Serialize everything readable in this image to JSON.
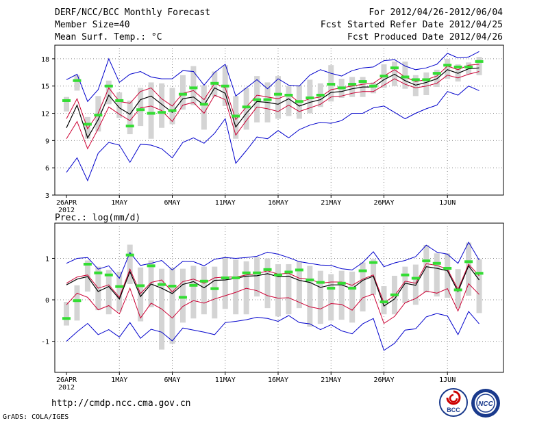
{
  "header": {
    "title": "DERF/NCC/BCC Monthly Forecast",
    "member_size": "Member Size=40",
    "variable_top": "Mean Surf. Temp.: °C",
    "period": "For 2012/04/26-2012/06/04",
    "started": "Fcst Started Refer Date 2012/04/25",
    "produced": "Fcst Produced Date 2012/04/26"
  },
  "footer": {
    "url": "http://cmdp.ncc.cma.gov.cn",
    "grads": "GrADS: COLA/IGES",
    "logo_left": "BCC",
    "logo_right": "NCC"
  },
  "colors": {
    "ensemble_mean": "#000000",
    "ensemble_spread": "#cc0033",
    "extremes": "#0000cc",
    "median_marker": "#33dd33",
    "box": "#d4d4d4",
    "grid": "#888888"
  },
  "chart_data": [
    {
      "type": "line",
      "title": "Mean Surf. Temp.: °C",
      "xlabel": "",
      "ylabel": "°C",
      "grid": true,
      "ylim": [
        3,
        19.5
      ],
      "yticks": [
        3,
        6,
        9,
        12,
        15,
        18
      ],
      "xticks": [
        {
          "day": 0,
          "label": "26APR",
          "sublabel": "2012"
        },
        {
          "day": 5,
          "label": "1MAY"
        },
        {
          "day": 10,
          "label": "6MAY"
        },
        {
          "day": 15,
          "label": "11MAY"
        },
        {
          "day": 20,
          "label": "16MAY"
        },
        {
          "day": 25,
          "label": "21MAY"
        },
        {
          "day": 30,
          "label": "26MAY"
        },
        {
          "day": 36,
          "label": "1JUN"
        }
      ],
      "days": [
        0,
        1,
        2,
        3,
        4,
        5,
        6,
        7,
        8,
        9,
        10,
        11,
        12,
        13,
        14,
        15,
        16,
        17,
        18,
        19,
        20,
        21,
        22,
        23,
        24,
        25,
        26,
        27,
        28,
        29,
        30,
        31,
        32,
        33,
        34,
        35,
        36,
        37,
        38,
        39
      ],
      "series": [
        {
          "name": "max",
          "values": [
            15.7,
            16.3,
            13.3,
            14.6,
            18.0,
            15.4,
            16.3,
            16.6,
            16.0,
            15.8,
            15.8,
            16.7,
            16.6,
            15.1,
            16.5,
            17.4,
            13.9,
            14.8,
            15.7,
            14.7,
            15.8,
            15.1,
            15.0,
            16.2,
            16.8,
            16.4,
            16.1,
            16.7,
            17.0,
            17.1,
            17.8,
            17.9,
            17.2,
            16.8,
            17.0,
            17.4,
            18.6,
            18.1,
            18.2,
            18.8
          ]
        },
        {
          "name": "upper",
          "values": [
            11.4,
            13.6,
            10.3,
            12.0,
            14.8,
            13.3,
            13.1,
            14.4,
            14.8,
            13.6,
            12.8,
            14.2,
            14.5,
            13.5,
            15.3,
            14.8,
            11.3,
            12.7,
            14.0,
            13.8,
            13.6,
            14.1,
            13.2,
            13.6,
            13.8,
            14.6,
            14.8,
            15.0,
            15.2,
            15.3,
            16.1,
            16.8,
            16.0,
            15.5,
            15.7,
            16.1,
            17.2,
            16.8,
            17.3,
            17.4
          ]
        },
        {
          "name": "mean",
          "values": [
            10.4,
            12.9,
            9.3,
            11.3,
            14.0,
            12.6,
            11.9,
            13.5,
            13.9,
            13.0,
            12.1,
            13.6,
            13.8,
            12.9,
            14.8,
            14.2,
            10.5,
            12.0,
            13.3,
            13.2,
            13.0,
            13.6,
            12.8,
            13.2,
            13.5,
            14.3,
            14.4,
            14.7,
            14.9,
            14.9,
            15.7,
            16.3,
            15.6,
            15.1,
            15.4,
            15.8,
            16.8,
            16.4,
            16.9,
            17.0
          ]
        },
        {
          "name": "lower",
          "values": [
            9.2,
            11.1,
            8.1,
            10.3,
            12.7,
            11.9,
            11.2,
            12.6,
            12.8,
            12.3,
            11.1,
            12.9,
            13.2,
            12.0,
            14.0,
            13.5,
            9.6,
            11.2,
            12.7,
            12.5,
            12.2,
            12.9,
            12.2,
            12.6,
            13.0,
            13.8,
            13.9,
            14.2,
            14.4,
            14.4,
            15.1,
            15.8,
            15.2,
            14.8,
            15.0,
            15.3,
            16.2,
            15.9,
            16.3,
            16.6
          ]
        },
        {
          "name": "min",
          "values": [
            5.5,
            7.1,
            4.6,
            7.6,
            8.8,
            8.5,
            6.6,
            8.6,
            8.5,
            8.1,
            7.1,
            8.8,
            9.3,
            8.7,
            9.8,
            11.4,
            6.5,
            7.9,
            9.4,
            9.2,
            10.1,
            9.3,
            10.2,
            10.7,
            11.0,
            10.9,
            11.2,
            12.0,
            12.0,
            12.6,
            12.8,
            12.1,
            11.4,
            12.0,
            12.5,
            12.9,
            14.4,
            14.0,
            15.0,
            14.5
          ]
        },
        {
          "name": "median",
          "values": [
            13.4,
            15.6,
            10.8,
            11.8,
            15.0,
            13.4,
            10.6,
            12.4,
            12.0,
            12.1,
            12.3,
            14.1,
            14.8,
            13.0,
            15.3,
            15.0,
            11.7,
            12.7,
            13.5,
            13.5,
            14.1,
            14.0,
            13.3,
            13.7,
            14.0,
            15.2,
            14.8,
            15.2,
            15.5,
            15.0,
            16.1,
            17.0,
            16.0,
            15.7,
            15.7,
            16.4,
            17.3,
            17.1,
            17.1,
            17.7
          ]
        },
        {
          "name": "box_low",
          "values": [
            12.2,
            14.5,
            9.2,
            10.0,
            13.0,
            11.5,
            9.7,
            10.6,
            9.2,
            10.4,
            10.8,
            12.4,
            12.9,
            10.2,
            13.8,
            12.8,
            9.2,
            10.2,
            11.0,
            11.0,
            11.4,
            11.7,
            11.4,
            12.0,
            12.7,
            13.3,
            13.7,
            13.8,
            13.8,
            14.2,
            14.8,
            15.0,
            14.7,
            13.9,
            14.0,
            14.9,
            15.8,
            15.5,
            16.3,
            16.2
          ]
        },
        {
          "name": "box_high",
          "values": [
            13.8,
            16.2,
            11.6,
            13.9,
            15.6,
            14.3,
            13.4,
            14.8,
            15.4,
            15.3,
            14.8,
            16.2,
            17.2,
            15.1,
            16.6,
            17.3,
            13.9,
            14.8,
            16.1,
            15.4,
            16.1,
            15.0,
            15.1,
            15.7,
            15.3,
            17.3,
            15.8,
            16.0,
            16.0,
            15.4,
            17.4,
            17.7,
            17.7,
            16.2,
            16.5,
            16.8,
            18.0,
            17.4,
            17.6,
            18.2
          ]
        }
      ]
    },
    {
      "type": "line",
      "title": "Prec.: log(mm/d)",
      "xlabel": "",
      "ylabel": "log(mm/d)",
      "grid": true,
      "ylim": [
        -1.75,
        1.85
      ],
      "yticks": [
        -1,
        0,
        1
      ],
      "xticks": [
        {
          "day": 0,
          "label": "26APR",
          "sublabel": "2012"
        },
        {
          "day": 5,
          "label": "1MAY"
        },
        {
          "day": 10,
          "label": "6MAY"
        },
        {
          "day": 15,
          "label": "11MAY"
        },
        {
          "day": 20,
          "label": "16MAY"
        },
        {
          "day": 25,
          "label": "21MAY"
        },
        {
          "day": 30,
          "label": "26MAY"
        },
        {
          "day": 36,
          "label": "1JUN"
        }
      ],
      "days": [
        0,
        1,
        2,
        3,
        4,
        5,
        6,
        7,
        8,
        9,
        10,
        11,
        12,
        13,
        14,
        15,
        16,
        17,
        18,
        19,
        20,
        21,
        22,
        23,
        24,
        25,
        26,
        27,
        28,
        29,
        30,
        31,
        32,
        33,
        34,
        35,
        36,
        37,
        38,
        39
      ],
      "series": [
        {
          "name": "max",
          "values": [
            0.88,
            1.0,
            1.02,
            0.74,
            0.82,
            0.52,
            1.14,
            0.83,
            0.88,
            0.95,
            0.72,
            0.93,
            0.92,
            0.82,
            0.98,
            1.02,
            1.0,
            1.02,
            1.05,
            1.15,
            1.1,
            1.02,
            0.92,
            0.88,
            0.84,
            0.83,
            0.75,
            0.72,
            0.9,
            1.16,
            0.8,
            0.89,
            0.95,
            1.04,
            1.32,
            1.15,
            1.1,
            0.88,
            1.39,
            0.96
          ]
        },
        {
          "name": "upper",
          "values": [
            0.4,
            0.55,
            0.6,
            0.28,
            0.36,
            0.06,
            0.74,
            0.15,
            0.42,
            0.48,
            0.19,
            0.44,
            0.5,
            0.4,
            0.53,
            0.55,
            0.55,
            0.6,
            0.63,
            0.7,
            0.62,
            0.64,
            0.52,
            0.5,
            0.4,
            0.43,
            0.43,
            0.35,
            0.5,
            0.6,
            -0.07,
            0.1,
            0.45,
            0.4,
            0.87,
            0.83,
            0.74,
            0.25,
            0.86,
            0.58
          ]
        },
        {
          "name": "mean",
          "values": [
            0.36,
            0.5,
            0.56,
            0.2,
            0.32,
            0.02,
            0.68,
            0.08,
            0.38,
            0.28,
            0.15,
            0.37,
            0.44,
            0.29,
            0.47,
            0.48,
            0.52,
            0.57,
            0.58,
            0.63,
            0.56,
            0.57,
            0.47,
            0.42,
            0.3,
            0.36,
            0.36,
            0.27,
            0.47,
            0.57,
            -0.15,
            0.02,
            0.4,
            0.35,
            0.8,
            0.76,
            0.7,
            0.2,
            0.82,
            0.48
          ]
        },
        {
          "name": "lower",
          "values": [
            -0.12,
            0.16,
            0.06,
            -0.24,
            -0.14,
            -0.34,
            0.28,
            -0.44,
            -0.08,
            -0.22,
            -0.44,
            -0.16,
            -0.02,
            -0.08,
            0.02,
            0.1,
            0.18,
            0.28,
            0.22,
            0.1,
            0.04,
            0.05,
            -0.06,
            -0.17,
            -0.22,
            -0.09,
            -0.11,
            -0.25,
            0.05,
            0.14,
            -0.57,
            -0.4,
            -0.07,
            0.03,
            0.21,
            0.16,
            0.27,
            -0.27,
            0.39,
            0.13
          ]
        },
        {
          "name": "min",
          "values": [
            -1.0,
            -0.77,
            -0.57,
            -0.84,
            -0.72,
            -0.9,
            -0.55,
            -0.93,
            -0.71,
            -0.78,
            -0.99,
            -0.68,
            -0.73,
            -0.78,
            -0.84,
            -0.55,
            -0.52,
            -0.48,
            -0.42,
            -0.45,
            -0.52,
            -0.38,
            -0.55,
            -0.58,
            -0.72,
            -0.6,
            -0.75,
            -0.82,
            -0.58,
            -0.45,
            -1.22,
            -1.05,
            -0.73,
            -0.7,
            -0.41,
            -0.33,
            -0.39,
            -0.84,
            -0.28,
            -0.58
          ]
        },
        {
          "name": "median",
          "values": [
            -0.45,
            -0.02,
            0.86,
            0.65,
            0.6,
            0.32,
            1.08,
            0.34,
            0.82,
            0.37,
            0.33,
            0.06,
            0.35,
            0.45,
            0.27,
            0.53,
            0.53,
            0.65,
            0.65,
            0.73,
            0.6,
            0.67,
            0.72,
            0.48,
            0.42,
            0.28,
            0.4,
            0.28,
            0.7,
            0.9,
            -0.05,
            0.12,
            0.6,
            0.52,
            0.94,
            0.88,
            0.76,
            0.24,
            0.92,
            0.64
          ]
        },
        {
          "name": "box_low",
          "values": [
            -0.62,
            -0.5,
            0.2,
            -0.25,
            -0.35,
            -0.28,
            0.38,
            -0.52,
            -0.18,
            -1.2,
            -1.06,
            -0.55,
            -0.45,
            -0.35,
            -0.45,
            -0.22,
            -0.35,
            -0.35,
            0.08,
            -0.2,
            -0.4,
            -0.35,
            -0.2,
            -0.65,
            -0.58,
            -0.5,
            -0.48,
            -0.55,
            -0.28,
            0.12,
            -0.35,
            -0.35,
            -0.08,
            -0.12,
            0.18,
            0.08,
            0.05,
            -0.2,
            0.1,
            -0.32
          ]
        },
        {
          "name": "box_high",
          "values": [
            -0.05,
            0.35,
            0.95,
            0.8,
            0.72,
            0.68,
            1.33,
            0.78,
            0.95,
            0.75,
            0.77,
            0.75,
            0.82,
            0.8,
            0.8,
            1.03,
            0.97,
            0.93,
            1.03,
            1.0,
            0.86,
            0.86,
            0.93,
            0.82,
            0.7,
            0.62,
            0.7,
            0.68,
            0.9,
            0.98,
            0.33,
            0.58,
            0.8,
            0.85,
            1.32,
            1.12,
            1.12,
            0.74,
            1.38,
            0.98
          ]
        }
      ]
    }
  ]
}
